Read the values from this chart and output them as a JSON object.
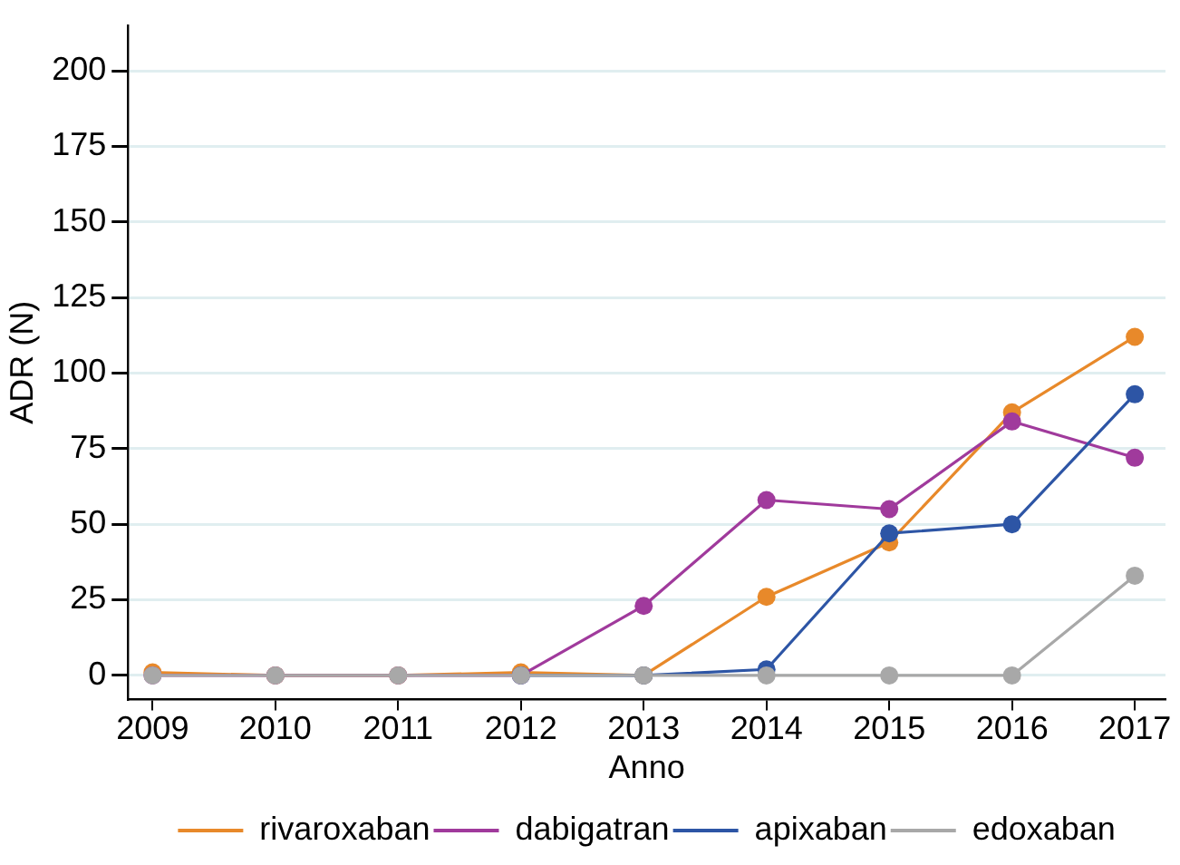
{
  "chart_data": {
    "type": "line",
    "xlabel": "Anno",
    "ylabel": "ADR (N)",
    "x": [
      2009,
      2010,
      2011,
      2012,
      2013,
      2014,
      2015,
      2016,
      2017
    ],
    "series": [
      {
        "name": "rivaroxaban",
        "color": "#e8892a",
        "values": [
          1,
          0,
          0,
          1,
          0,
          26,
          44,
          87,
          112
        ]
      },
      {
        "name": "dabigatran",
        "color": "#a03a9c",
        "values": [
          0,
          0,
          0,
          0,
          23,
          58,
          55,
          84,
          72
        ]
      },
      {
        "name": "apixaban",
        "color": "#2d55a5",
        "values": [
          null,
          null,
          null,
          0,
          0,
          2,
          47,
          50,
          93
        ]
      },
      {
        "name": "edoxaban",
        "color": "#a8a8a8",
        "values": [
          0,
          0,
          0,
          0,
          0,
          0,
          0,
          0,
          33
        ]
      }
    ],
    "xlim": [
      2008.8,
      2017.25
    ],
    "ylim": [
      -8,
      215
    ],
    "xticks": [
      2009,
      2010,
      2011,
      2012,
      2013,
      2014,
      2015,
      2016,
      2017
    ],
    "yticks": [
      0,
      25,
      50,
      75,
      100,
      125,
      150,
      175,
      200
    ],
    "grid": "y",
    "legend": "bottom",
    "marker": "circle",
    "line_style": "solid"
  }
}
